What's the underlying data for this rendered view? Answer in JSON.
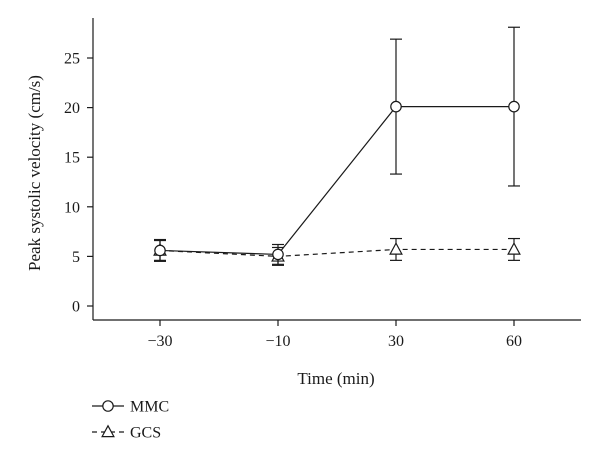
{
  "chart_data": {
    "type": "line",
    "title": "",
    "xlabel": "Time (min)",
    "ylabel": "Peak systolic velocity (cm/s)",
    "categories": [
      "−30",
      "−10",
      "30",
      "60"
    ],
    "ylim": [
      -1,
      28
    ],
    "yticks": [
      0,
      5,
      10,
      15,
      20,
      25
    ],
    "grid": false,
    "legend_position": "bottom-left",
    "series": [
      {
        "name": "MMC",
        "marker": "circle",
        "line_style": "solid",
        "values": [
          5.6,
          5.2,
          20.1,
          20.1
        ],
        "error": [
          1.1,
          1.0,
          6.8,
          8.0
        ]
      },
      {
        "name": "GCS",
        "marker": "triangle",
        "line_style": "dashed",
        "values": [
          5.6,
          5.0,
          5.7,
          5.7
        ],
        "error": [
          1.0,
          0.9,
          1.1,
          1.1
        ]
      }
    ],
    "colors": {
      "line": "#1a1a1a",
      "background": "#ffffff"
    }
  }
}
